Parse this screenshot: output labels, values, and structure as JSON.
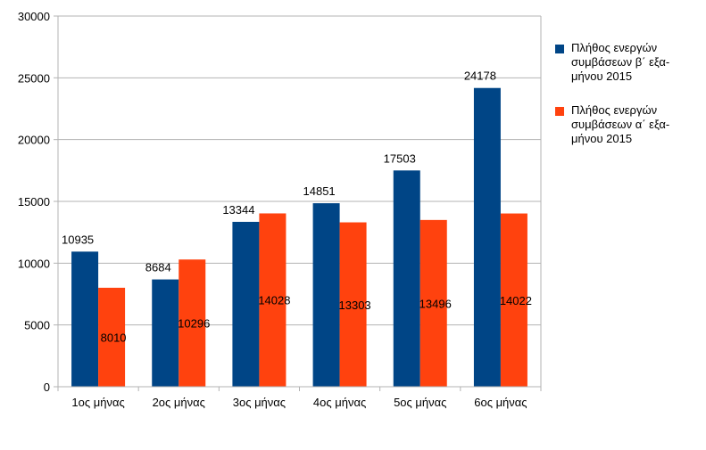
{
  "chart_data": {
    "type": "bar",
    "categories": [
      "1ος μήνας",
      "2ος μήνας",
      "3ος μήνας",
      "4ος μήνας",
      "5ος μήνας",
      "6ος μήνας"
    ],
    "series": [
      {
        "name": "Πλήθος ενεργών συμβάσεων β΄ εξα-μήνου 2015",
        "color": "#004586",
        "values": [
          10935,
          8684,
          13344,
          14851,
          17503,
          24178
        ],
        "label_position": "above"
      },
      {
        "name": "Πλήθος ενεργών συμβάσεων α΄ εξα-μήνου 2015",
        "color": "#ff420e",
        "values": [
          8010,
          10296,
          14028,
          13303,
          13496,
          14022
        ],
        "label_position": "center"
      }
    ],
    "ylim": [
      0,
      30000
    ],
    "yticks": [
      0,
      5000,
      10000,
      15000,
      20000,
      25000,
      30000
    ],
    "grid": true,
    "legend": "right"
  },
  "legend": {
    "items": [
      {
        "lines": [
          "Πλήθος ενεργών",
          "συμβάσεων β΄ εξα-",
          "μήνου 2015"
        ],
        "color": "#004586"
      },
      {
        "lines": [
          "Πλήθος ενεργών",
          "συμβάσεων α΄ εξα-",
          "μήνου 2015"
        ],
        "color": "#ff420e"
      }
    ]
  }
}
